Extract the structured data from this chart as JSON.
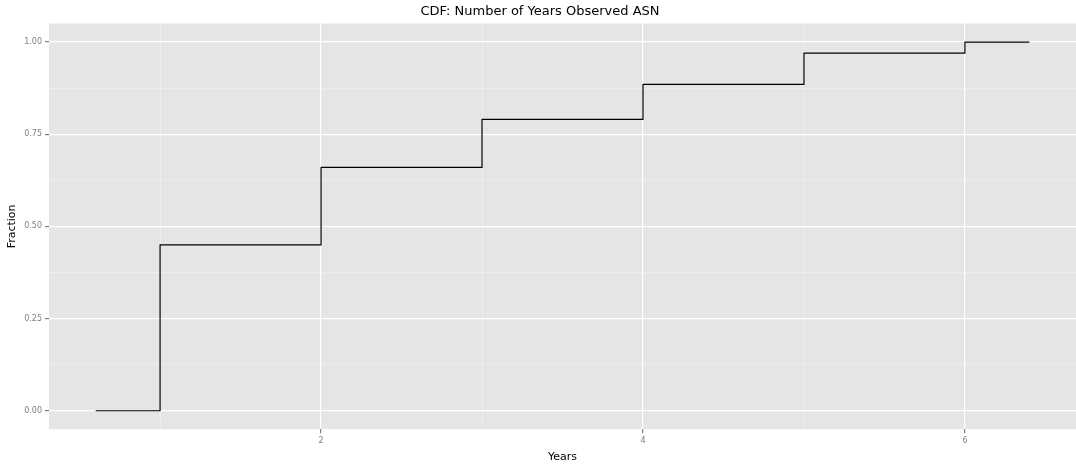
{
  "chart_data": {
    "type": "step",
    "title": "CDF: Number of Years Observed ASN",
    "xlabel": "Years",
    "ylabel": "Fraction",
    "x": [
      0.6,
      1,
      2,
      3,
      4,
      5,
      6,
      6.4
    ],
    "values": [
      0,
      0.45,
      0.66,
      0.79,
      0.885,
      0.97,
      1,
      1
    ],
    "color": "#000000",
    "xlim": [
      0.31,
      6.69
    ],
    "ylim": [
      -0.05,
      1.05
    ],
    "xticks": [
      {
        "value": 1,
        "label": null
      },
      2,
      {
        "value": 3,
        "label": null
      },
      4,
      {
        "value": 5,
        "label": null
      },
      6
    ],
    "yticks": [
      {
        "value": 0,
        "label": "0.00"
      },
      {
        "value": 0.125,
        "label": null
      },
      {
        "value": 0.25,
        "label": "0.25"
      },
      {
        "value": 0.375,
        "label": null
      },
      {
        "value": 0.5,
        "label": "0.50"
      },
      {
        "value": 0.625,
        "label": null
      },
      {
        "value": 0.75,
        "label": "0.75"
      },
      {
        "value": 0.875,
        "label": null
      },
      {
        "value": 1,
        "label": "1.00"
      }
    ],
    "grid": true,
    "marker": "none",
    "line_style": "solid"
  }
}
